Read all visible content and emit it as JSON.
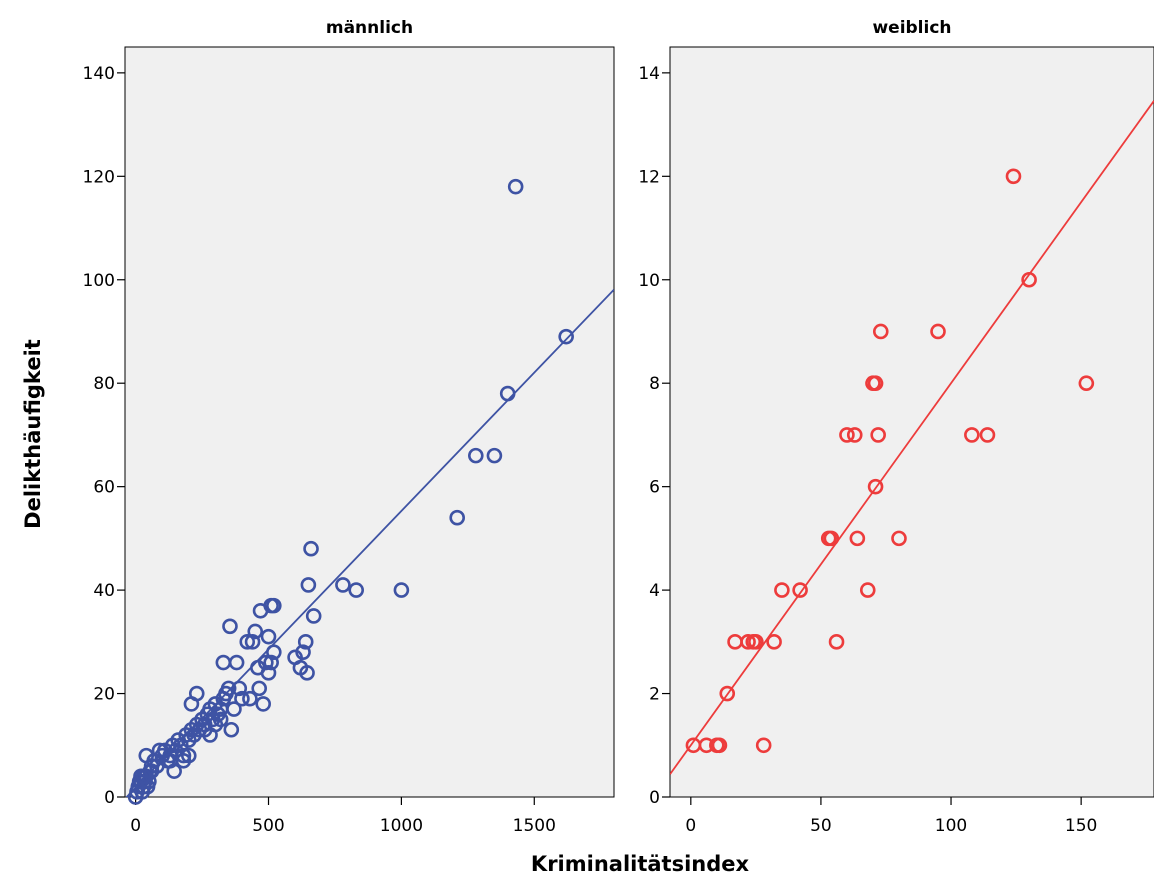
{
  "chart_data": {
    "type": "scatter",
    "xlabel": "Kriminalitätsindex",
    "ylabel": "Delikthäufigkeit",
    "grid": false,
    "fit_line": true,
    "panels": [
      {
        "title": "männlich",
        "color": "#3e53a4",
        "xlim": [
          -40,
          1800
        ],
        "ylim": [
          0,
          145
        ],
        "xticks": [
          0,
          500,
          1000,
          1500
        ],
        "yticks": [
          0,
          20,
          40,
          60,
          80,
          100,
          120,
          140
        ],
        "fit": {
          "slope": 0.0535,
          "intercept": 1.8
        },
        "points": [
          [
            0,
            0
          ],
          [
            5,
            1
          ],
          [
            10,
            2
          ],
          [
            15,
            3
          ],
          [
            20,
            4
          ],
          [
            25,
            1
          ],
          [
            30,
            2
          ],
          [
            35,
            3
          ],
          [
            40,
            4
          ],
          [
            45,
            2
          ],
          [
            50,
            3
          ],
          [
            55,
            5
          ],
          [
            60,
            6
          ],
          [
            70,
            7
          ],
          [
            80,
            6
          ],
          [
            100,
            8
          ],
          [
            110,
            9
          ],
          [
            120,
            7
          ],
          [
            130,
            8
          ],
          [
            140,
            10
          ],
          [
            150,
            9
          ],
          [
            160,
            11
          ],
          [
            170,
            10
          ],
          [
            180,
            8
          ],
          [
            190,
            12
          ],
          [
            200,
            11
          ],
          [
            210,
            13
          ],
          [
            220,
            12
          ],
          [
            230,
            14
          ],
          [
            240,
            13
          ],
          [
            250,
            15
          ],
          [
            260,
            14
          ],
          [
            270,
            16
          ],
          [
            280,
            17
          ],
          [
            290,
            15
          ],
          [
            300,
            18
          ],
          [
            310,
            16
          ],
          [
            320,
            17
          ],
          [
            330,
            19
          ],
          [
            340,
            20
          ],
          [
            20,
            3
          ],
          [
            30,
            4
          ],
          [
            40,
            8
          ],
          [
            60,
            5
          ],
          [
            90,
            9
          ],
          [
            130,
            7
          ],
          [
            145,
            5
          ],
          [
            180,
            7
          ],
          [
            200,
            8
          ],
          [
            210,
            18
          ],
          [
            230,
            20
          ],
          [
            260,
            13
          ],
          [
            280,
            12
          ],
          [
            300,
            14
          ],
          [
            320,
            15
          ],
          [
            330,
            26
          ],
          [
            350,
            21
          ],
          [
            355,
            33
          ],
          [
            360,
            13
          ],
          [
            370,
            17
          ],
          [
            380,
            26
          ],
          [
            390,
            21
          ],
          [
            400,
            19
          ],
          [
            420,
            30
          ],
          [
            430,
            19
          ],
          [
            440,
            30
          ],
          [
            450,
            32
          ],
          [
            460,
            25
          ],
          [
            465,
            21
          ],
          [
            470,
            36
          ],
          [
            480,
            18
          ],
          [
            490,
            26
          ],
          [
            500,
            31
          ],
          [
            500,
            24
          ],
          [
            510,
            37
          ],
          [
            510,
            26
          ],
          [
            520,
            37
          ],
          [
            520,
            28
          ],
          [
            600,
            27
          ],
          [
            620,
            25
          ],
          [
            630,
            28
          ],
          [
            640,
            30
          ],
          [
            645,
            24
          ],
          [
            650,
            41
          ],
          [
            660,
            48
          ],
          [
            670,
            35
          ],
          [
            780,
            41
          ],
          [
            830,
            40
          ],
          [
            1000,
            40
          ],
          [
            1210,
            54
          ],
          [
            1280,
            66
          ],
          [
            1350,
            66
          ],
          [
            1400,
            78
          ],
          [
            1430,
            118
          ],
          [
            1620,
            89
          ]
        ]
      },
      {
        "title": "weiblich",
        "color": "#ed3c3c",
        "xlim": [
          -8,
          178
        ],
        "ylim": [
          0,
          14.5
        ],
        "xticks": [
          0,
          50,
          100,
          150
        ],
        "yticks": [
          0,
          2,
          4,
          6,
          8,
          10,
          12,
          14
        ],
        "fit": {
          "slope": 0.07,
          "intercept": 1.0
        },
        "points": [
          [
            1,
            1
          ],
          [
            6,
            1
          ],
          [
            10,
            1
          ],
          [
            11,
            1
          ],
          [
            14,
            2
          ],
          [
            17,
            3
          ],
          [
            22,
            3
          ],
          [
            24,
            3
          ],
          [
            25,
            3
          ],
          [
            28,
            1
          ],
          [
            32,
            3
          ],
          [
            35,
            4
          ],
          [
            42,
            4
          ],
          [
            53,
            5
          ],
          [
            54,
            5
          ],
          [
            56,
            3
          ],
          [
            60,
            7
          ],
          [
            63,
            7
          ],
          [
            64,
            5
          ],
          [
            68,
            4
          ],
          [
            70,
            8
          ],
          [
            71,
            6
          ],
          [
            71,
            8
          ],
          [
            72,
            7
          ],
          [
            73,
            9
          ],
          [
            80,
            5
          ],
          [
            95,
            9
          ],
          [
            108,
            7
          ],
          [
            114,
            7
          ],
          [
            124,
            12
          ],
          [
            130,
            10
          ],
          [
            152,
            8
          ]
        ]
      }
    ]
  }
}
